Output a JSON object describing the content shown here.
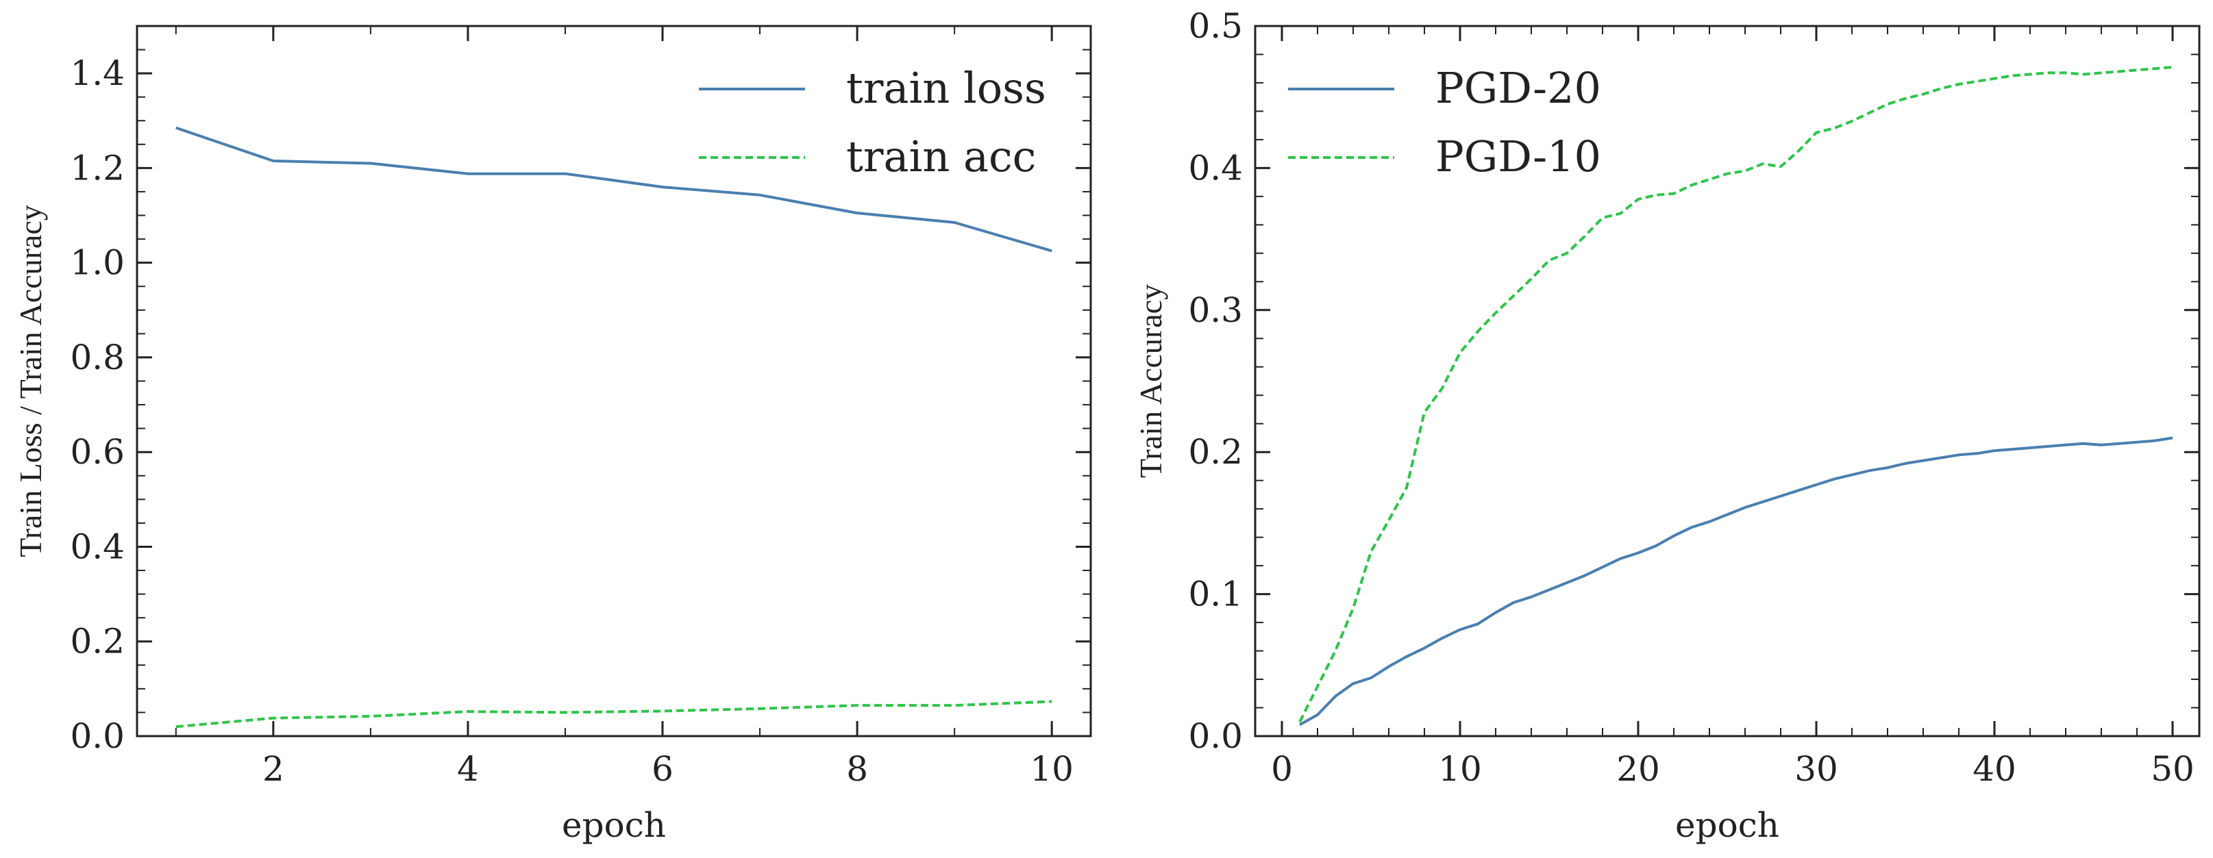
{
  "chart_data": [
    {
      "type": "line",
      "xlabel": "epoch",
      "ylabel": "Train Loss / Train Accuracy",
      "xlim": [
        0.6,
        10.4
      ],
      "ylim": [
        0.0,
        1.5
      ],
      "xticks": [
        2,
        4,
        6,
        8,
        10
      ],
      "xminor": [
        1,
        3,
        5,
        7,
        9
      ],
      "yticks": [
        0.0,
        0.2,
        0.4,
        0.6,
        0.8,
        1.0,
        1.2,
        1.4
      ],
      "yminor": [
        0.05,
        0.1,
        0.15,
        0.25,
        0.3,
        0.35,
        0.45,
        0.5,
        0.55,
        0.65,
        0.7,
        0.75,
        0.85,
        0.9,
        0.95,
        1.05,
        1.1,
        1.15,
        1.25,
        1.3,
        1.35,
        1.45
      ],
      "x": [
        1,
        2,
        3,
        4,
        5,
        6,
        7,
        8,
        9,
        10
      ],
      "legend_position": "top-right",
      "series": [
        {
          "name": "train loss",
          "style": "solid",
          "color": "#4a7fb0",
          "values": [
            1.285,
            1.215,
            1.21,
            1.188,
            1.188,
            1.16,
            1.143,
            1.105,
            1.085,
            1.025
          ]
        },
        {
          "name": "train acc",
          "style": "dashed",
          "color": "#2ec44a",
          "values": [
            0.02,
            0.038,
            0.042,
            0.052,
            0.05,
            0.053,
            0.058,
            0.065,
            0.065,
            0.073
          ]
        }
      ]
    },
    {
      "type": "line",
      "xlabel": "epoch",
      "ylabel": "Train Accuracy",
      "xlim": [
        -1.5,
        51.5
      ],
      "ylim": [
        0.0,
        0.5
      ],
      "xticks": [
        0,
        10,
        20,
        30,
        40,
        50
      ],
      "xminor": [
        2,
        4,
        6,
        8,
        12,
        14,
        16,
        18,
        22,
        24,
        26,
        28,
        32,
        34,
        36,
        38,
        42,
        44,
        46,
        48
      ],
      "yticks": [
        0.0,
        0.1,
        0.2,
        0.3,
        0.4,
        0.5
      ],
      "yminor": [
        0.02,
        0.04,
        0.06,
        0.08,
        0.12,
        0.14,
        0.16,
        0.18,
        0.22,
        0.24,
        0.26,
        0.28,
        0.32,
        0.34,
        0.36,
        0.38,
        0.42,
        0.44,
        0.46,
        0.48
      ],
      "x": [
        1,
        2,
        3,
        4,
        5,
        6,
        7,
        8,
        9,
        10,
        11,
        12,
        13,
        14,
        15,
        16,
        17,
        18,
        19,
        20,
        21,
        22,
        23,
        24,
        25,
        26,
        27,
        28,
        29,
        30,
        31,
        32,
        33,
        34,
        35,
        36,
        37,
        38,
        39,
        40,
        41,
        42,
        43,
        44,
        45,
        46,
        47,
        48,
        49,
        50
      ],
      "legend_position": "top-left",
      "series": [
        {
          "name": "PGD-20",
          "style": "solid",
          "color": "#4a7fb0",
          "values": [
            0.008,
            0.015,
            0.028,
            0.037,
            0.041,
            0.049,
            0.056,
            0.062,
            0.069,
            0.075,
            0.079,
            0.087,
            0.094,
            0.098,
            0.103,
            0.108,
            0.113,
            0.119,
            0.125,
            0.129,
            0.134,
            0.141,
            0.147,
            0.151,
            0.156,
            0.161,
            0.165,
            0.169,
            0.173,
            0.177,
            0.181,
            0.184,
            0.187,
            0.189,
            0.192,
            0.194,
            0.196,
            0.198,
            0.199,
            0.201,
            0.202,
            0.203,
            0.204,
            0.205,
            0.206,
            0.205,
            0.206,
            0.207,
            0.208,
            0.21
          ]
        },
        {
          "name": "PGD-10",
          "style": "dashed",
          "color": "#2ec44a",
          "values": [
            0.01,
            0.035,
            0.06,
            0.09,
            0.13,
            0.152,
            0.175,
            0.228,
            0.245,
            0.27,
            0.285,
            0.298,
            0.31,
            0.322,
            0.335,
            0.34,
            0.352,
            0.365,
            0.368,
            0.378,
            0.381,
            0.382,
            0.388,
            0.392,
            0.396,
            0.398,
            0.403,
            0.401,
            0.412,
            0.425,
            0.428,
            0.433,
            0.439,
            0.445,
            0.449,
            0.452,
            0.456,
            0.459,
            0.461,
            0.463,
            0.465,
            0.466,
            0.467,
            0.467,
            0.466,
            0.467,
            0.468,
            0.469,
            0.47,
            0.471
          ]
        }
      ]
    }
  ]
}
